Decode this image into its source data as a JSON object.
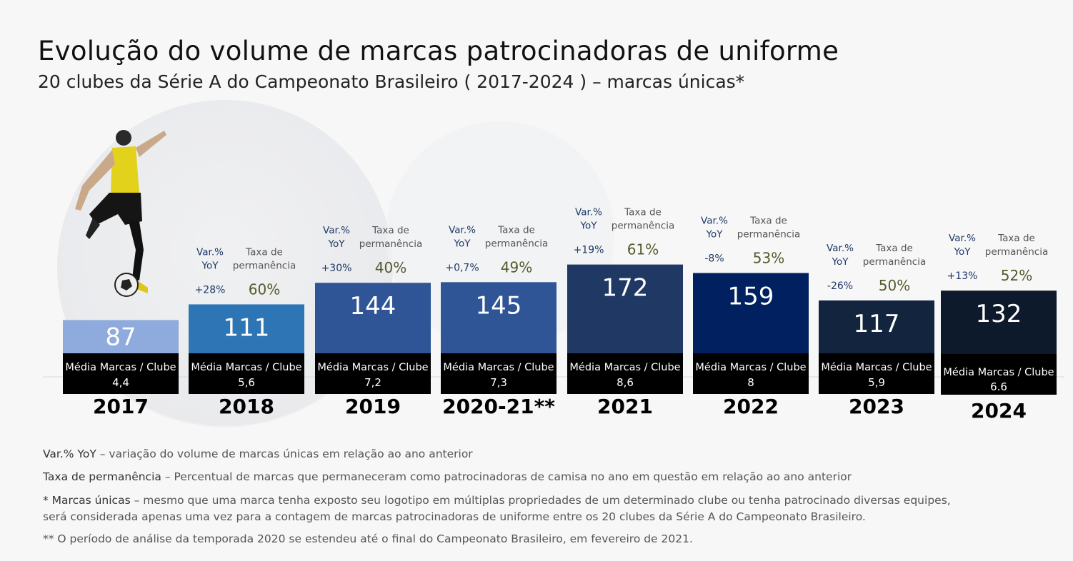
{
  "title": "Evolução do volume de marcas patrocinadoras de uniforme",
  "subtitle": "20 clubes da Série A do Campeonato Brasileiro ( 2017-2024 ) – marcas únicas*",
  "chart_data": {
    "type": "bar",
    "categories": [
      "2017",
      "2018",
      "2019",
      "2020-21**",
      "2021",
      "2022",
      "2023",
      "2024"
    ],
    "values": [
      87,
      111,
      144,
      145,
      172,
      159,
      117,
      132
    ],
    "bar_colors": [
      "#8faadc",
      "#2e75b6",
      "#2f5597",
      "#2f5597",
      "#203864",
      "#002060",
      "#13243f",
      "#0d1a2b"
    ],
    "avg_label": "Média Marcas / Clube",
    "avg_values": [
      "4,4",
      "5,6",
      "7,2",
      "7,3",
      "8,6",
      "8",
      "5,9",
      "6.6"
    ],
    "yoy_label": [
      "Var.%",
      "YoY"
    ],
    "yoy_values": [
      null,
      "+28%",
      "+30%",
      "+0,7%",
      "+19%",
      "-8%",
      "-26%",
      "+13%"
    ],
    "retention_label": [
      "Taxa de",
      "permanência"
    ],
    "retention_values": [
      null,
      "60%",
      "40%",
      "49%",
      "61%",
      "53%",
      "50%",
      "52%"
    ],
    "yoy_color": "#1f3864",
    "retention_color": "#545a2a"
  },
  "footnotes": {
    "yoy_term": "Var.% YoY",
    "yoy_text": " – variação do volume de marcas únicas em relação ao ano anterior",
    "ret_term": "Taxa de permanência",
    "ret_text": " – Percentual de marcas que permaneceram como patrocinadoras de camisa no ano em questão em relação ao ano anterior",
    "unique_term": "* Marcas únicas",
    "unique_text": " – mesmo que uma marca tenha exposto seu logotipo em múltiplas propriedades de um determinado clube ou tenha patrocinado diversas equipes, será considerada apenas uma vez para a contagem de marcas patrocinadoras de uniforme entre os 20 clubes da Série A do Campeonato Brasileiro.",
    "period_text": "** O período de análise da temporada 2020 se estendeu até o final do Campeonato Brasileiro, em fevereiro de 2021."
  }
}
